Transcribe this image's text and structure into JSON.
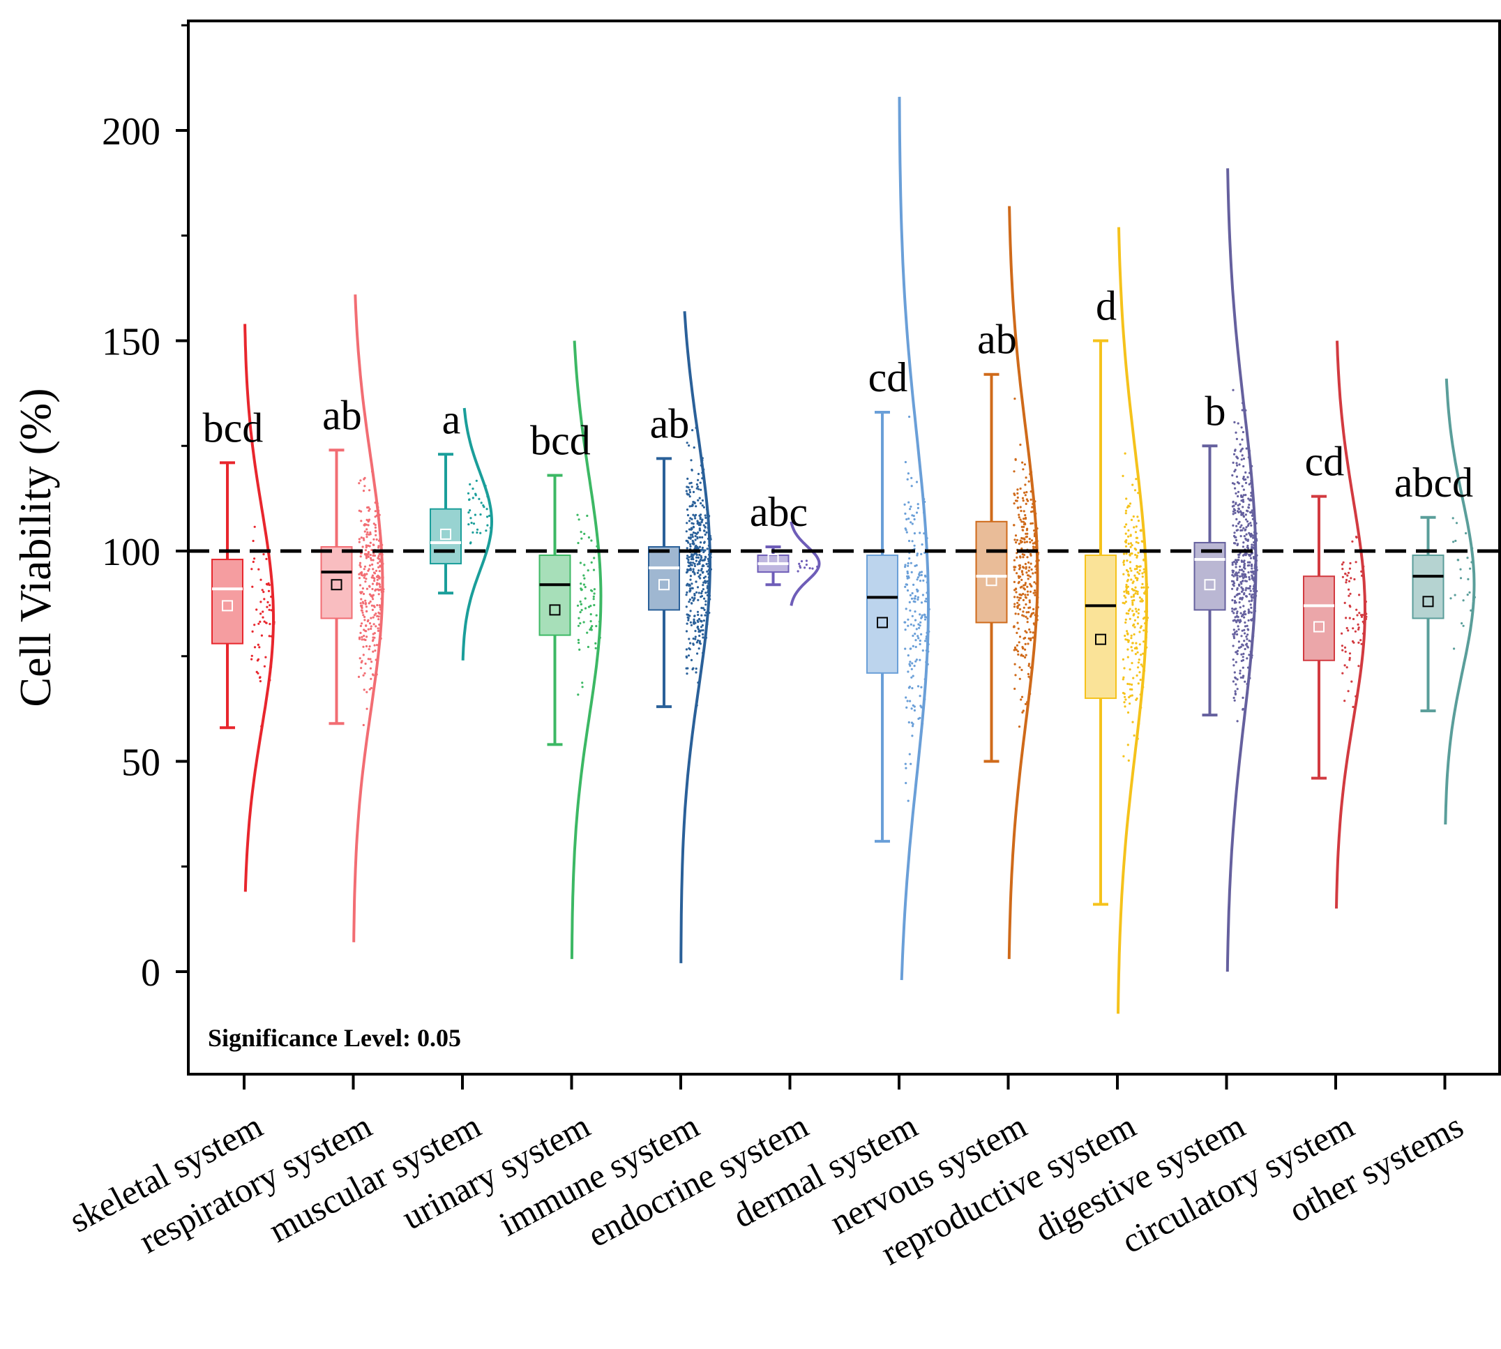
{
  "chart_data": {
    "type": "box",
    "subtype": "raincloud (box + scatter + density)",
    "ylabel": "Cell Viability (%)",
    "xlabel": "",
    "ylim": [
      -25,
      225
    ],
    "yticks": [
      0,
      50,
      100,
      150,
      200
    ],
    "reference_line": 100,
    "annotation": "Significance Level: 0.05",
    "categories": [
      "skeletal system",
      "respiratory system",
      "muscular system",
      "urinary system",
      "immune system",
      "endocrine system",
      "dermal system",
      "nervous system",
      "reproductive system",
      "digestive system",
      "circulatory system",
      "other systems"
    ],
    "series": [
      {
        "name": "skeletal system",
        "color": "#e8262d",
        "min": 58,
        "q1": 78,
        "median": 91,
        "q3": 98,
        "max": 121,
        "mean": 87,
        "dens_min": 19,
        "dens_max": 154,
        "dens_peak": 84,
        "letters": "bcd",
        "n": 60,
        "dark_median": false
      },
      {
        "name": "respiratory system",
        "color": "#f26d73",
        "min": 59,
        "q1": 84,
        "median": 95,
        "q3": 101,
        "max": 124,
        "mean": 92,
        "dens_min": 7,
        "dens_max": 161,
        "dens_peak": 92,
        "letters": "ab",
        "n": 300,
        "dark_median": true
      },
      {
        "name": "muscular system",
        "color": "#1a9e9a",
        "min": 90,
        "q1": 97,
        "median": 102,
        "q3": 110,
        "max": 123,
        "mean": 104,
        "dens_min": 74,
        "dens_max": 134,
        "dens_peak": 107,
        "letters": "a",
        "n": 35,
        "dark_median": false
      },
      {
        "name": "urinary system",
        "color": "#3cb864",
        "min": 54,
        "q1": 80,
        "median": 92,
        "q3": 99,
        "max": 118,
        "mean": 86,
        "dens_min": 3,
        "dens_max": 150,
        "dens_peak": 89,
        "letters": "bcd",
        "n": 70,
        "dark_median": true
      },
      {
        "name": "immune system",
        "color": "#2a6099",
        "min": 63,
        "q1": 86,
        "median": 96,
        "q3": 101,
        "max": 122,
        "mean": 92,
        "dens_min": 2,
        "dens_max": 157,
        "dens_peak": 97,
        "letters": "ab",
        "n": 400,
        "dark_median": false
      },
      {
        "name": "endocrine system",
        "color": "#6e5db8",
        "min": 92,
        "q1": 95,
        "median": 97,
        "q3": 99,
        "max": 101,
        "mean": 98,
        "dens_min": 87,
        "dens_max": 107,
        "dens_peak": 97,
        "letters": "abc",
        "n": 12,
        "dark_median": false
      },
      {
        "name": "dermal system",
        "color": "#6a9fd8",
        "min": 31,
        "q1": 71,
        "median": 89,
        "q3": 99,
        "max": 133,
        "mean": 83,
        "dens_min": -2,
        "dens_max": 208,
        "dens_peak": 87,
        "letters": "cd",
        "n": 200,
        "dark_median": true
      },
      {
        "name": "nervous system",
        "color": "#cf6a1a",
        "min": 50,
        "q1": 83,
        "median": 94,
        "q3": 107,
        "max": 142,
        "mean": 93,
        "dens_min": 3,
        "dens_max": 182,
        "dens_peak": 94,
        "letters": "ab",
        "n": 300,
        "dark_median": false
      },
      {
        "name": "reproductive system",
        "color": "#f5c21b",
        "min": 16,
        "q1": 65,
        "median": 87,
        "q3": 99,
        "max": 150,
        "mean": 79,
        "dens_min": -10,
        "dens_max": 177,
        "dens_peak": 88,
        "letters": "d",
        "n": 250,
        "dark_median": true
      },
      {
        "name": "digestive system",
        "color": "#65609e",
        "min": 61,
        "q1": 86,
        "median": 98,
        "q3": 102,
        "max": 125,
        "mean": 92,
        "dens_min": 0,
        "dens_max": 191,
        "dens_peak": 97,
        "letters": "b",
        "n": 500,
        "dark_median": false
      },
      {
        "name": "circulatory system",
        "color": "#d23a40",
        "min": 46,
        "q1": 74,
        "median": 87,
        "q3": 94,
        "max": 113,
        "mean": 82,
        "dens_min": 15,
        "dens_max": 150,
        "dens_peak": 86,
        "letters": "cd",
        "n": 80,
        "dark_median": false
      },
      {
        "name": "other systems",
        "color": "#5a9e9a",
        "min": 62,
        "q1": 84,
        "median": 94,
        "q3": 99,
        "max": 108,
        "mean": 88,
        "dens_min": 35,
        "dens_max": 141,
        "dens_peak": 92,
        "letters": "abcd",
        "n": 25,
        "dark_median": true
      }
    ]
  }
}
